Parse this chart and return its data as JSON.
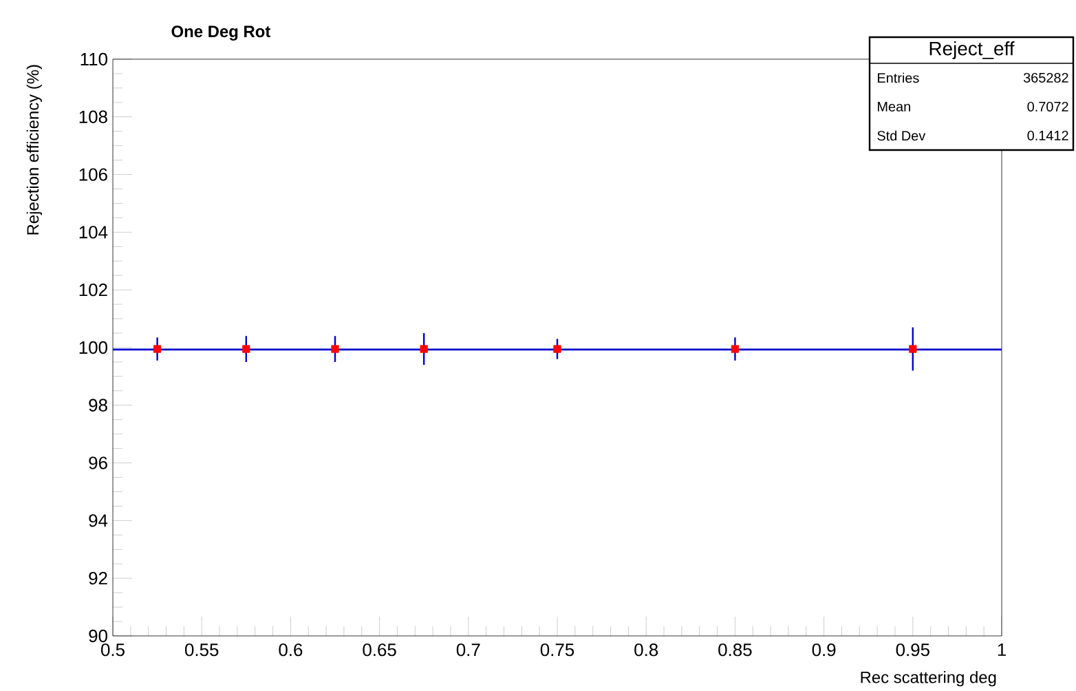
{
  "chart_data": {
    "type": "scatter",
    "title": "One Deg Rot",
    "xlabel": "Rec scattering deg",
    "ylabel": "Rejection efficiency (%)",
    "x": [
      0.525,
      0.575,
      0.625,
      0.675,
      0.75,
      0.85,
      0.95
    ],
    "series": [
      {
        "color": "#ff0000",
        "marker": "square",
        "values": [
          99.95,
          99.95,
          99.95,
          99.95,
          99.95,
          99.95,
          99.95
        ],
        "errors": [
          0.4,
          0.45,
          0.45,
          0.55,
          0.35,
          0.4,
          0.75
        ]
      },
      {
        "type": "line",
        "color": "#0000cc",
        "x": [
          0.5,
          1
        ],
        "values": [
          99.93,
          99.93
        ]
      }
    ],
    "xlim": [
      0.5,
      1
    ],
    "ylim": [
      90,
      110
    ],
    "xticks": [
      0.5,
      0.55,
      0.6,
      0.65,
      0.7,
      0.75,
      0.8,
      0.85,
      0.9,
      0.95,
      1
    ],
    "yticks": [
      90,
      92,
      94,
      96,
      98,
      100,
      102,
      104,
      106,
      108,
      110
    ],
    "annotations": [
      "Reject_eff",
      "Entries",
      "365282",
      "Mean",
      "0.7072",
      "Std Dev",
      "0.1412"
    ],
    "grid": false
  }
}
